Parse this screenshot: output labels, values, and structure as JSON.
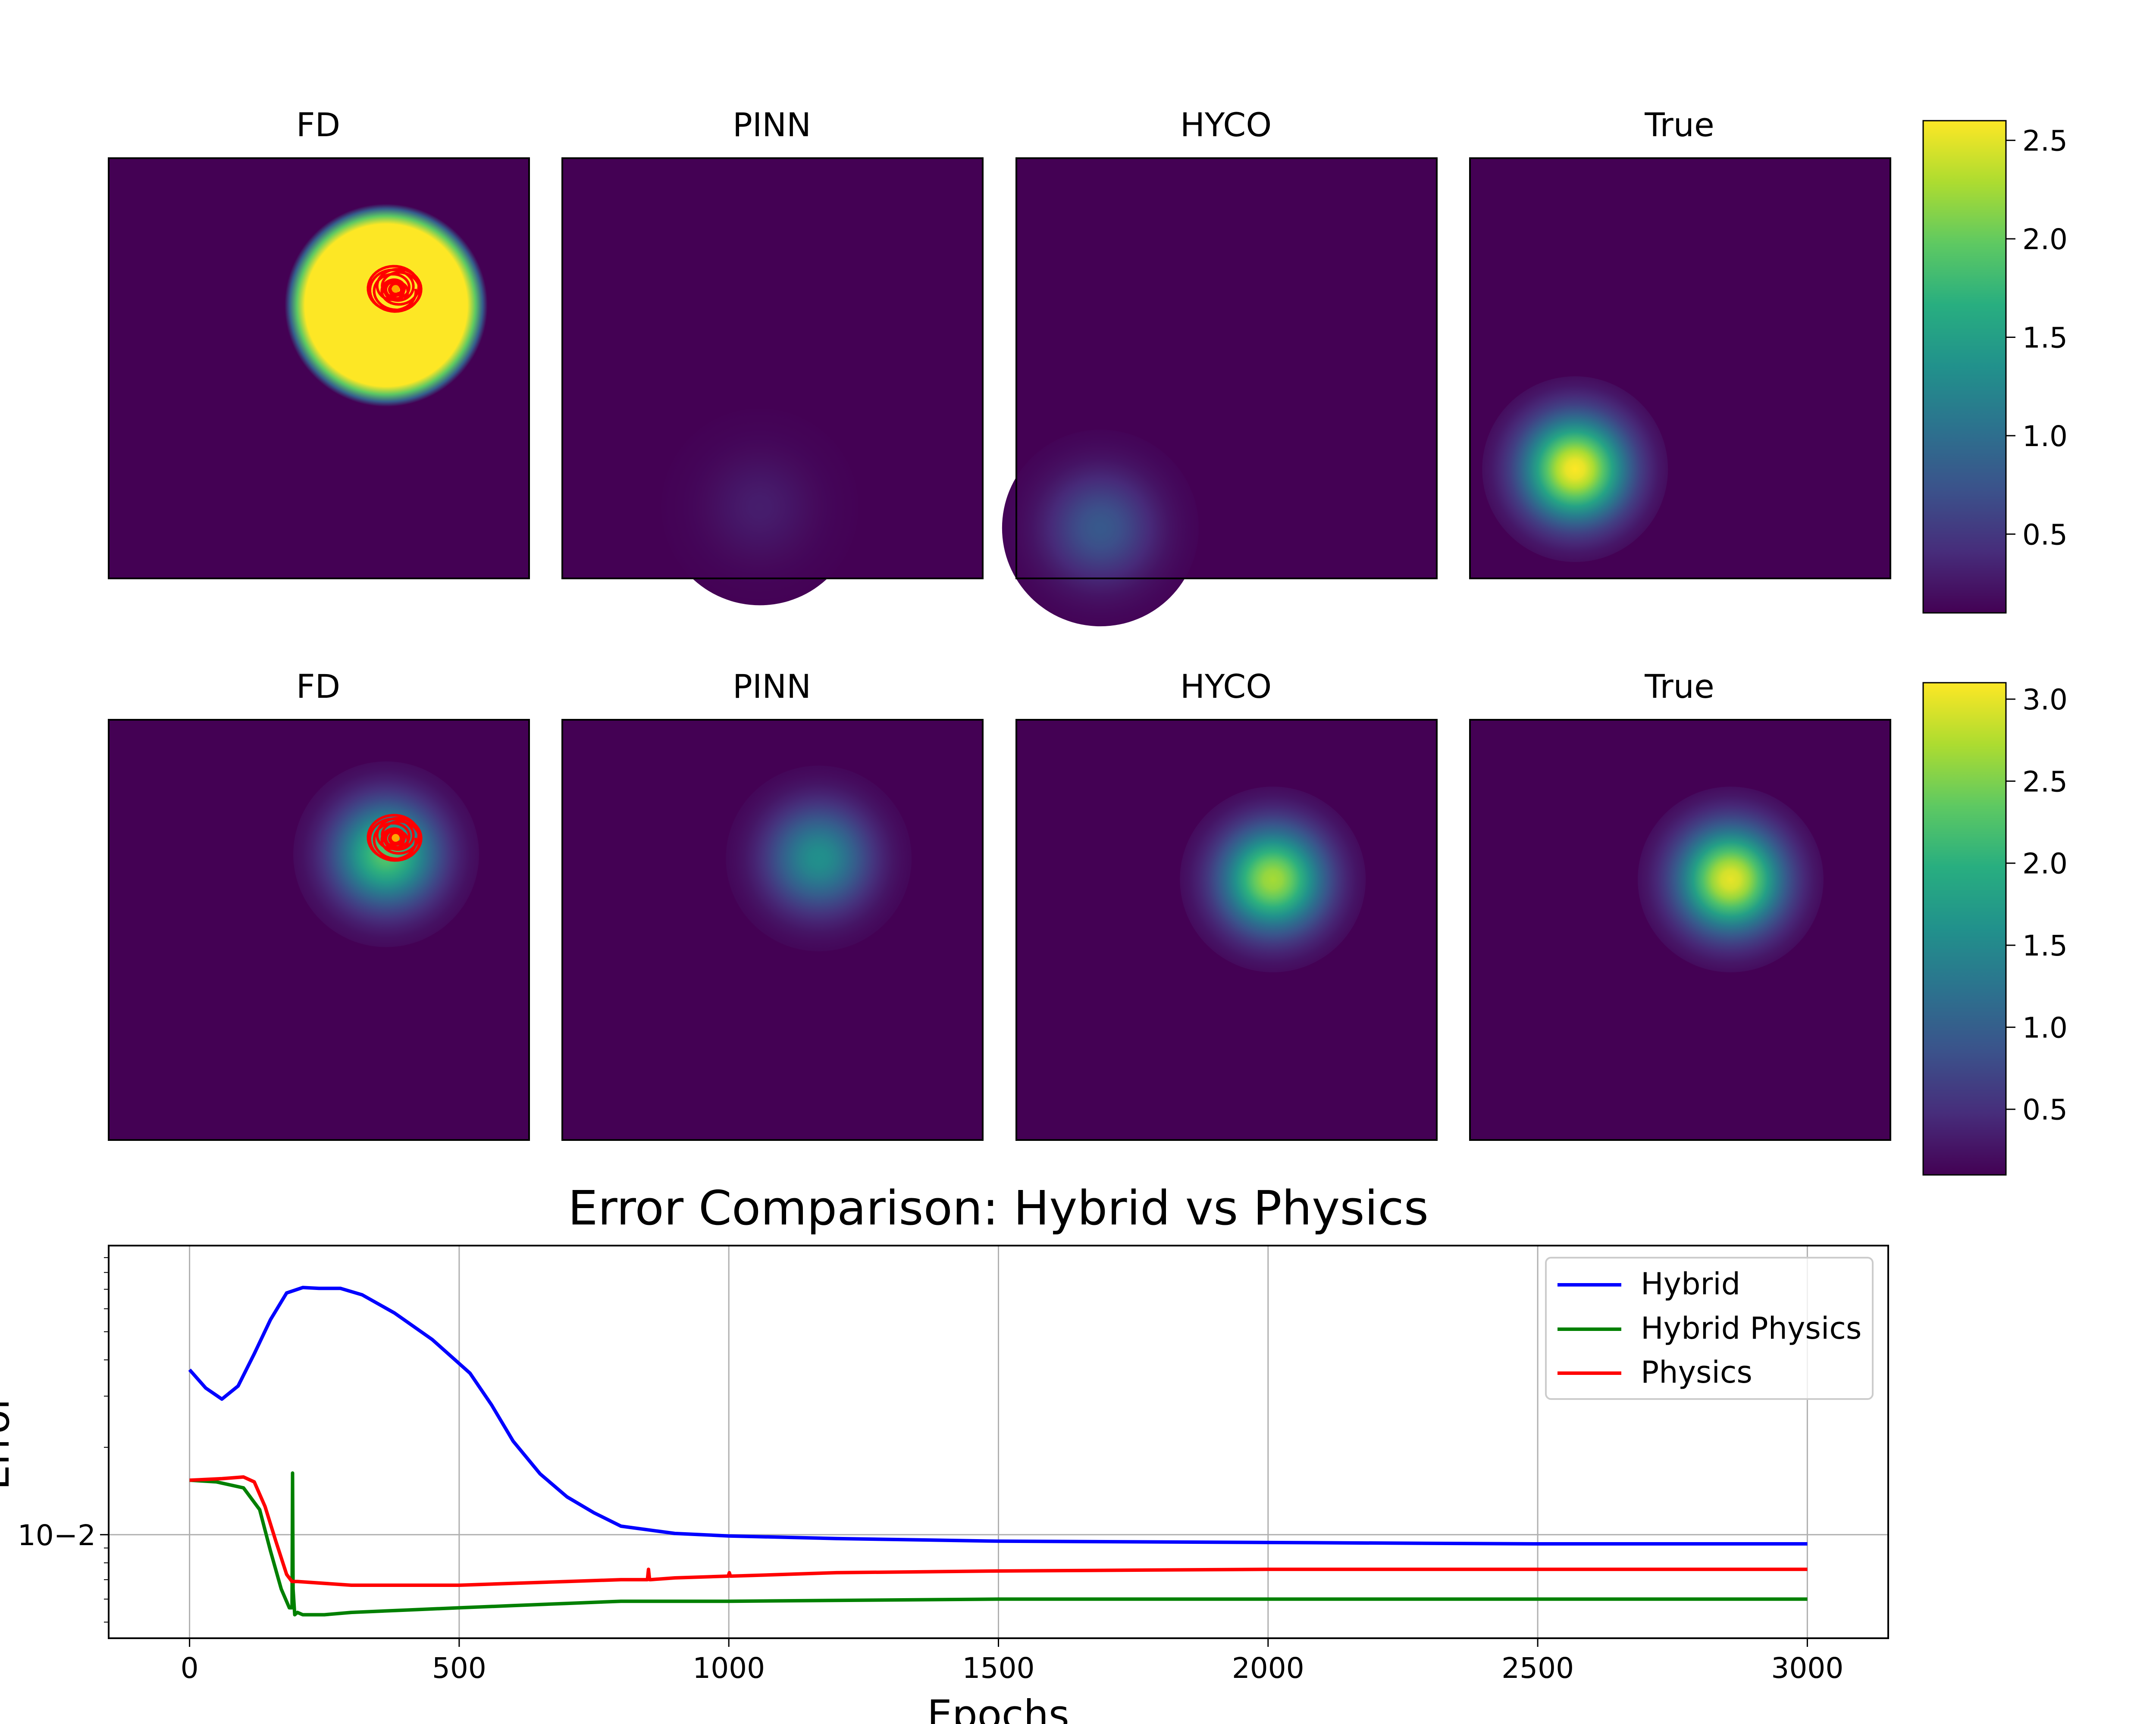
{
  "figure": {
    "row1": {
      "titles": [
        "FD",
        "PINN",
        "HYCO",
        "True"
      ]
    },
    "row2": {
      "titles": [
        "FD",
        "PINN",
        "HYCO",
        "True"
      ]
    }
  },
  "colors": {
    "viridis_low": "#440154",
    "viridis_high": "#fde725",
    "hybrid": "#0000ff",
    "hybrid_physics": "#008000",
    "physics": "#ff0000",
    "grid": "#b0b0b0"
  },
  "chart_data": [
    {
      "type": "heatmap",
      "title": "FD",
      "row": 1,
      "colorbar": {
        "vmin": 0.1,
        "vmax": 2.6,
        "ticks": [
          "0.5",
          "1.0",
          "1.5",
          "2.0",
          "2.5"
        ],
        "tick_values": [
          0.5,
          1.0,
          1.5,
          2.0,
          2.5
        ]
      },
      "blob": {
        "center": [
          0.66,
          0.35
        ],
        "peak": 2.6,
        "radius": 0.21,
        "shape": "plateau"
      },
      "overlay": "red spiral trajectory"
    },
    {
      "type": "heatmap",
      "title": "PINN",
      "row": 1,
      "blob": {
        "center": [
          0.47,
          0.83
        ],
        "peak": 0.3,
        "radius": 0.09,
        "shape": "gaussian"
      }
    },
    {
      "type": "heatmap",
      "title": "HYCO",
      "row": 1,
      "blob": {
        "center": [
          0.2,
          0.88
        ],
        "peak": 0.8,
        "radius": 0.09,
        "shape": "gaussian"
      }
    },
    {
      "type": "heatmap",
      "title": "True",
      "row": 1,
      "blob": {
        "center": [
          0.25,
          0.74
        ],
        "peak": 2.6,
        "radius": 0.085,
        "shape": "gaussian"
      }
    },
    {
      "type": "heatmap",
      "title": "FD",
      "row": 2,
      "colorbar": {
        "vmin": 0.1,
        "vmax": 3.1,
        "ticks": [
          "0.5",
          "1.0",
          "1.5",
          "2.0",
          "2.5",
          "3.0"
        ],
        "tick_values": [
          0.5,
          1.0,
          1.5,
          2.0,
          2.5,
          3.0
        ]
      },
      "blob": {
        "center": [
          0.66,
          0.32
        ],
        "peak": 2.3,
        "radius": 0.085,
        "shape": "gaussian"
      },
      "overlay": "red spiral trajectory"
    },
    {
      "type": "heatmap",
      "title": "PINN",
      "row": 2,
      "blob": {
        "center": [
          0.61,
          0.33
        ],
        "peak": 1.6,
        "radius": 0.085,
        "shape": "gaussian"
      }
    },
    {
      "type": "heatmap",
      "title": "HYCO",
      "row": 2,
      "blob": {
        "center": [
          0.61,
          0.38
        ],
        "peak": 2.7,
        "radius": 0.085,
        "shape": "gaussian"
      }
    },
    {
      "type": "heatmap",
      "title": "True",
      "row": 2,
      "blob": {
        "center": [
          0.62,
          0.38
        ],
        "peak": 3.0,
        "radius": 0.085,
        "shape": "gaussian"
      }
    },
    {
      "type": "line",
      "title": "Error Comparison: Hybrid vs Physics",
      "xlabel": "Epochs",
      "ylabel": "Error",
      "yscale": "log",
      "xlim": [
        -150,
        3150
      ],
      "ylim": [
        0.0044,
        0.099
      ],
      "xticks": [
        0,
        500,
        1000,
        1500,
        2000,
        2500,
        3000
      ],
      "xtick_labels": [
        "0",
        "500",
        "1000",
        "1500",
        "2000",
        "2500",
        "3000"
      ],
      "ytick_label": "10−2",
      "ytick_value": 0.01,
      "grid": true,
      "legend_position": "top-right",
      "series": [
        {
          "name": "Hybrid",
          "color": "#0000ff",
          "x": [
            0,
            30,
            60,
            90,
            120,
            150,
            180,
            210,
            240,
            280,
            320,
            380,
            450,
            520,
            560,
            600,
            650,
            700,
            750,
            800,
            900,
            1000,
            1200,
            1500,
            2000,
            2500,
            3000
          ],
          "y": [
            0.037,
            0.032,
            0.0293,
            0.0325,
            0.042,
            0.055,
            0.068,
            0.071,
            0.0705,
            0.0705,
            0.067,
            0.058,
            0.047,
            0.036,
            0.028,
            0.021,
            0.0162,
            0.0135,
            0.0119,
            0.0107,
            0.0101,
            0.0099,
            0.0097,
            0.0095,
            0.0094,
            0.0093,
            0.0093
          ]
        },
        {
          "name": "Hybrid Physics",
          "color": "#008000",
          "x": [
            0,
            50,
            100,
            130,
            150,
            170,
            185,
            190,
            191,
            192,
            195,
            200,
            210,
            250,
            300,
            400,
            500,
            600,
            700,
            800,
            1000,
            1500,
            2000,
            3000
          ],
          "y": [
            0.0154,
            0.0152,
            0.0145,
            0.0122,
            0.0088,
            0.0065,
            0.0056,
            0.0056,
            0.0163,
            0.0065,
            0.0053,
            0.0054,
            0.0053,
            0.0053,
            0.0054,
            0.0055,
            0.0056,
            0.0057,
            0.0058,
            0.0059,
            0.0059,
            0.006,
            0.006,
            0.006
          ]
        },
        {
          "name": "Physics",
          "color": "#ff0000",
          "x": [
            0,
            60,
            100,
            120,
            140,
            160,
            180,
            190,
            200,
            300,
            400,
            500,
            600,
            700,
            800,
            849,
            851,
            853,
            855,
            900,
            999,
            1001,
            1003,
            1005,
            1200,
            1500,
            2000,
            3000
          ],
          "y": [
            0.0154,
            0.0156,
            0.0158,
            0.0152,
            0.0125,
            0.0095,
            0.0073,
            0.0069,
            0.0069,
            0.0067,
            0.0067,
            0.0067,
            0.0068,
            0.0069,
            0.007,
            0.007,
            0.0076,
            0.007,
            0.007,
            0.0071,
            0.0072,
            0.0074,
            0.0072,
            0.0072,
            0.0074,
            0.0075,
            0.0076,
            0.0076
          ]
        }
      ]
    }
  ]
}
